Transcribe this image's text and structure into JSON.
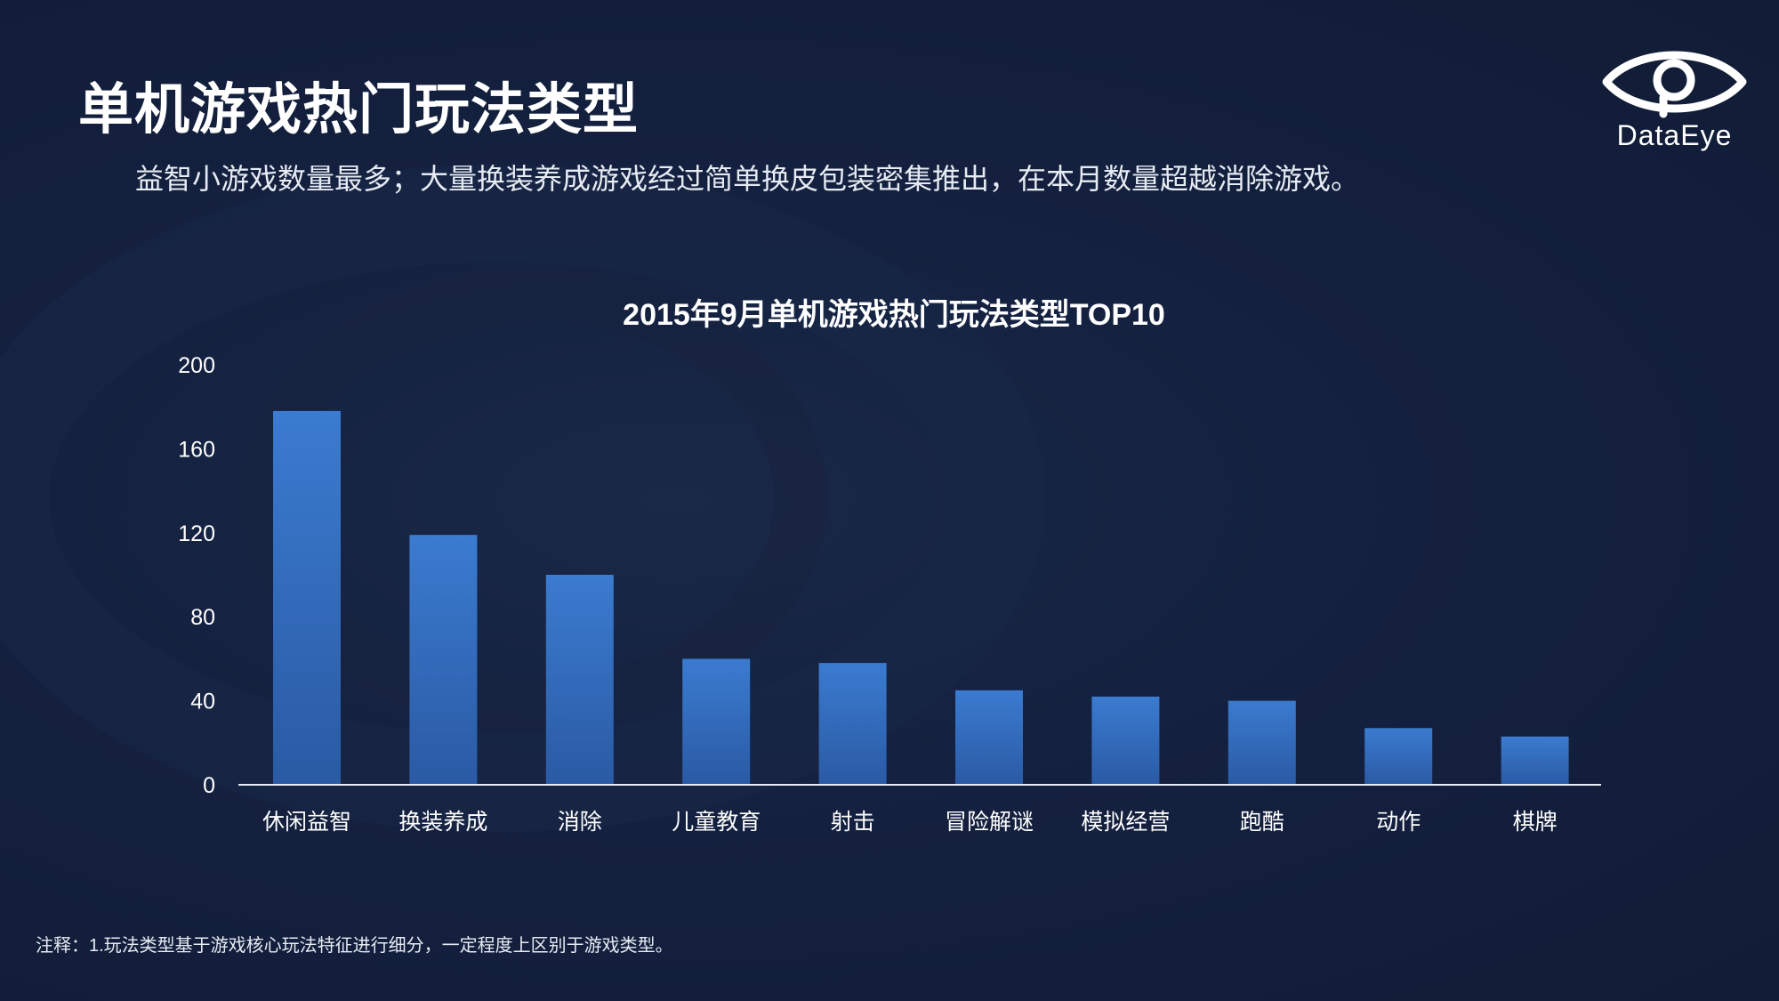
{
  "header": {
    "title": "单机游戏热门玩法类型",
    "subtitle": "益智小游戏数量最多；大量换装养成游戏经过简单换皮包装密集推出，在本月数量超越消除游戏。"
  },
  "logo": {
    "text": "DataEye",
    "icon": "eye-icon"
  },
  "footnote": "注释：1.玩法类型基于游戏核心玩法特征进行细分，一定程度上区别于游戏类型。",
  "colors": {
    "background": "#131f3b",
    "bar_top": "#3b7bd0",
    "bar_bottom": "#2a5aa4",
    "axis": "#e8edf5"
  },
  "chart_data": {
    "type": "bar",
    "title": "2015年9月单机游戏热门玩法类型TOP10",
    "categories": [
      "休闲益智",
      "换装养成",
      "消除",
      "儿童教育",
      "射击",
      "冒险解谜",
      "模拟经营",
      "跑酷",
      "动作",
      "棋牌"
    ],
    "values": [
      178,
      119,
      100,
      60,
      58,
      45,
      42,
      40,
      27,
      23
    ],
    "yticks": [
      "0",
      "40",
      "80",
      "120",
      "160",
      "200"
    ],
    "ylim": [
      0,
      200
    ],
    "xlabel": "",
    "ylabel": "",
    "grid": false,
    "legend": "none"
  }
}
